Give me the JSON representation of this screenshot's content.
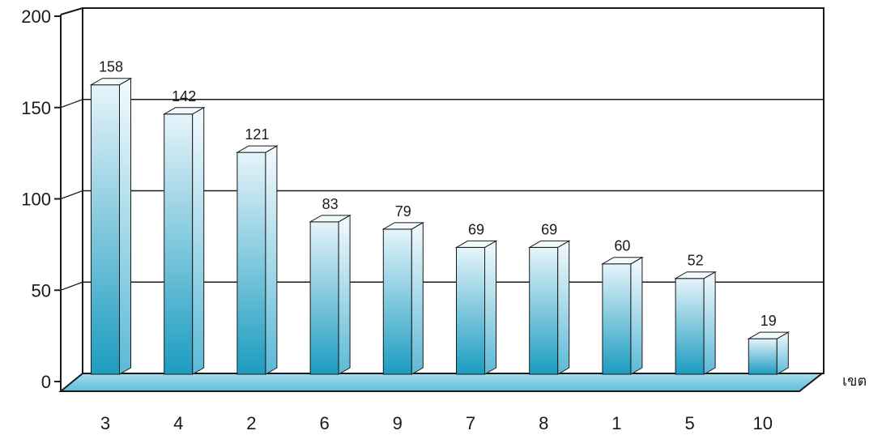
{
  "chart_data": {
    "type": "bar",
    "categories": [
      "3",
      "4",
      "2",
      "6",
      "9",
      "7",
      "8",
      "1",
      "5",
      "10"
    ],
    "values": [
      158,
      142,
      121,
      83,
      79,
      69,
      69,
      60,
      52,
      19
    ],
    "value_labels": [
      "158",
      "142",
      "121",
      "83",
      "79",
      "69",
      "69",
      "60",
      "52",
      "19"
    ],
    "xlabel": "เขต",
    "ylabel": "",
    "ylim": [
      0,
      200
    ],
    "yticks": [
      0,
      50,
      100,
      150,
      200
    ],
    "ytick_labels": [
      "0",
      "50",
      "100",
      "150",
      "200"
    ],
    "grid": true,
    "style": "3d-bar",
    "colors": {
      "bar_top": "#e6f4fa",
      "bar_bottom": "#1b9cc0",
      "bar_side": "#bfe3ef",
      "floor": "#7fcbe2",
      "outline": "#1a1a1a"
    }
  }
}
